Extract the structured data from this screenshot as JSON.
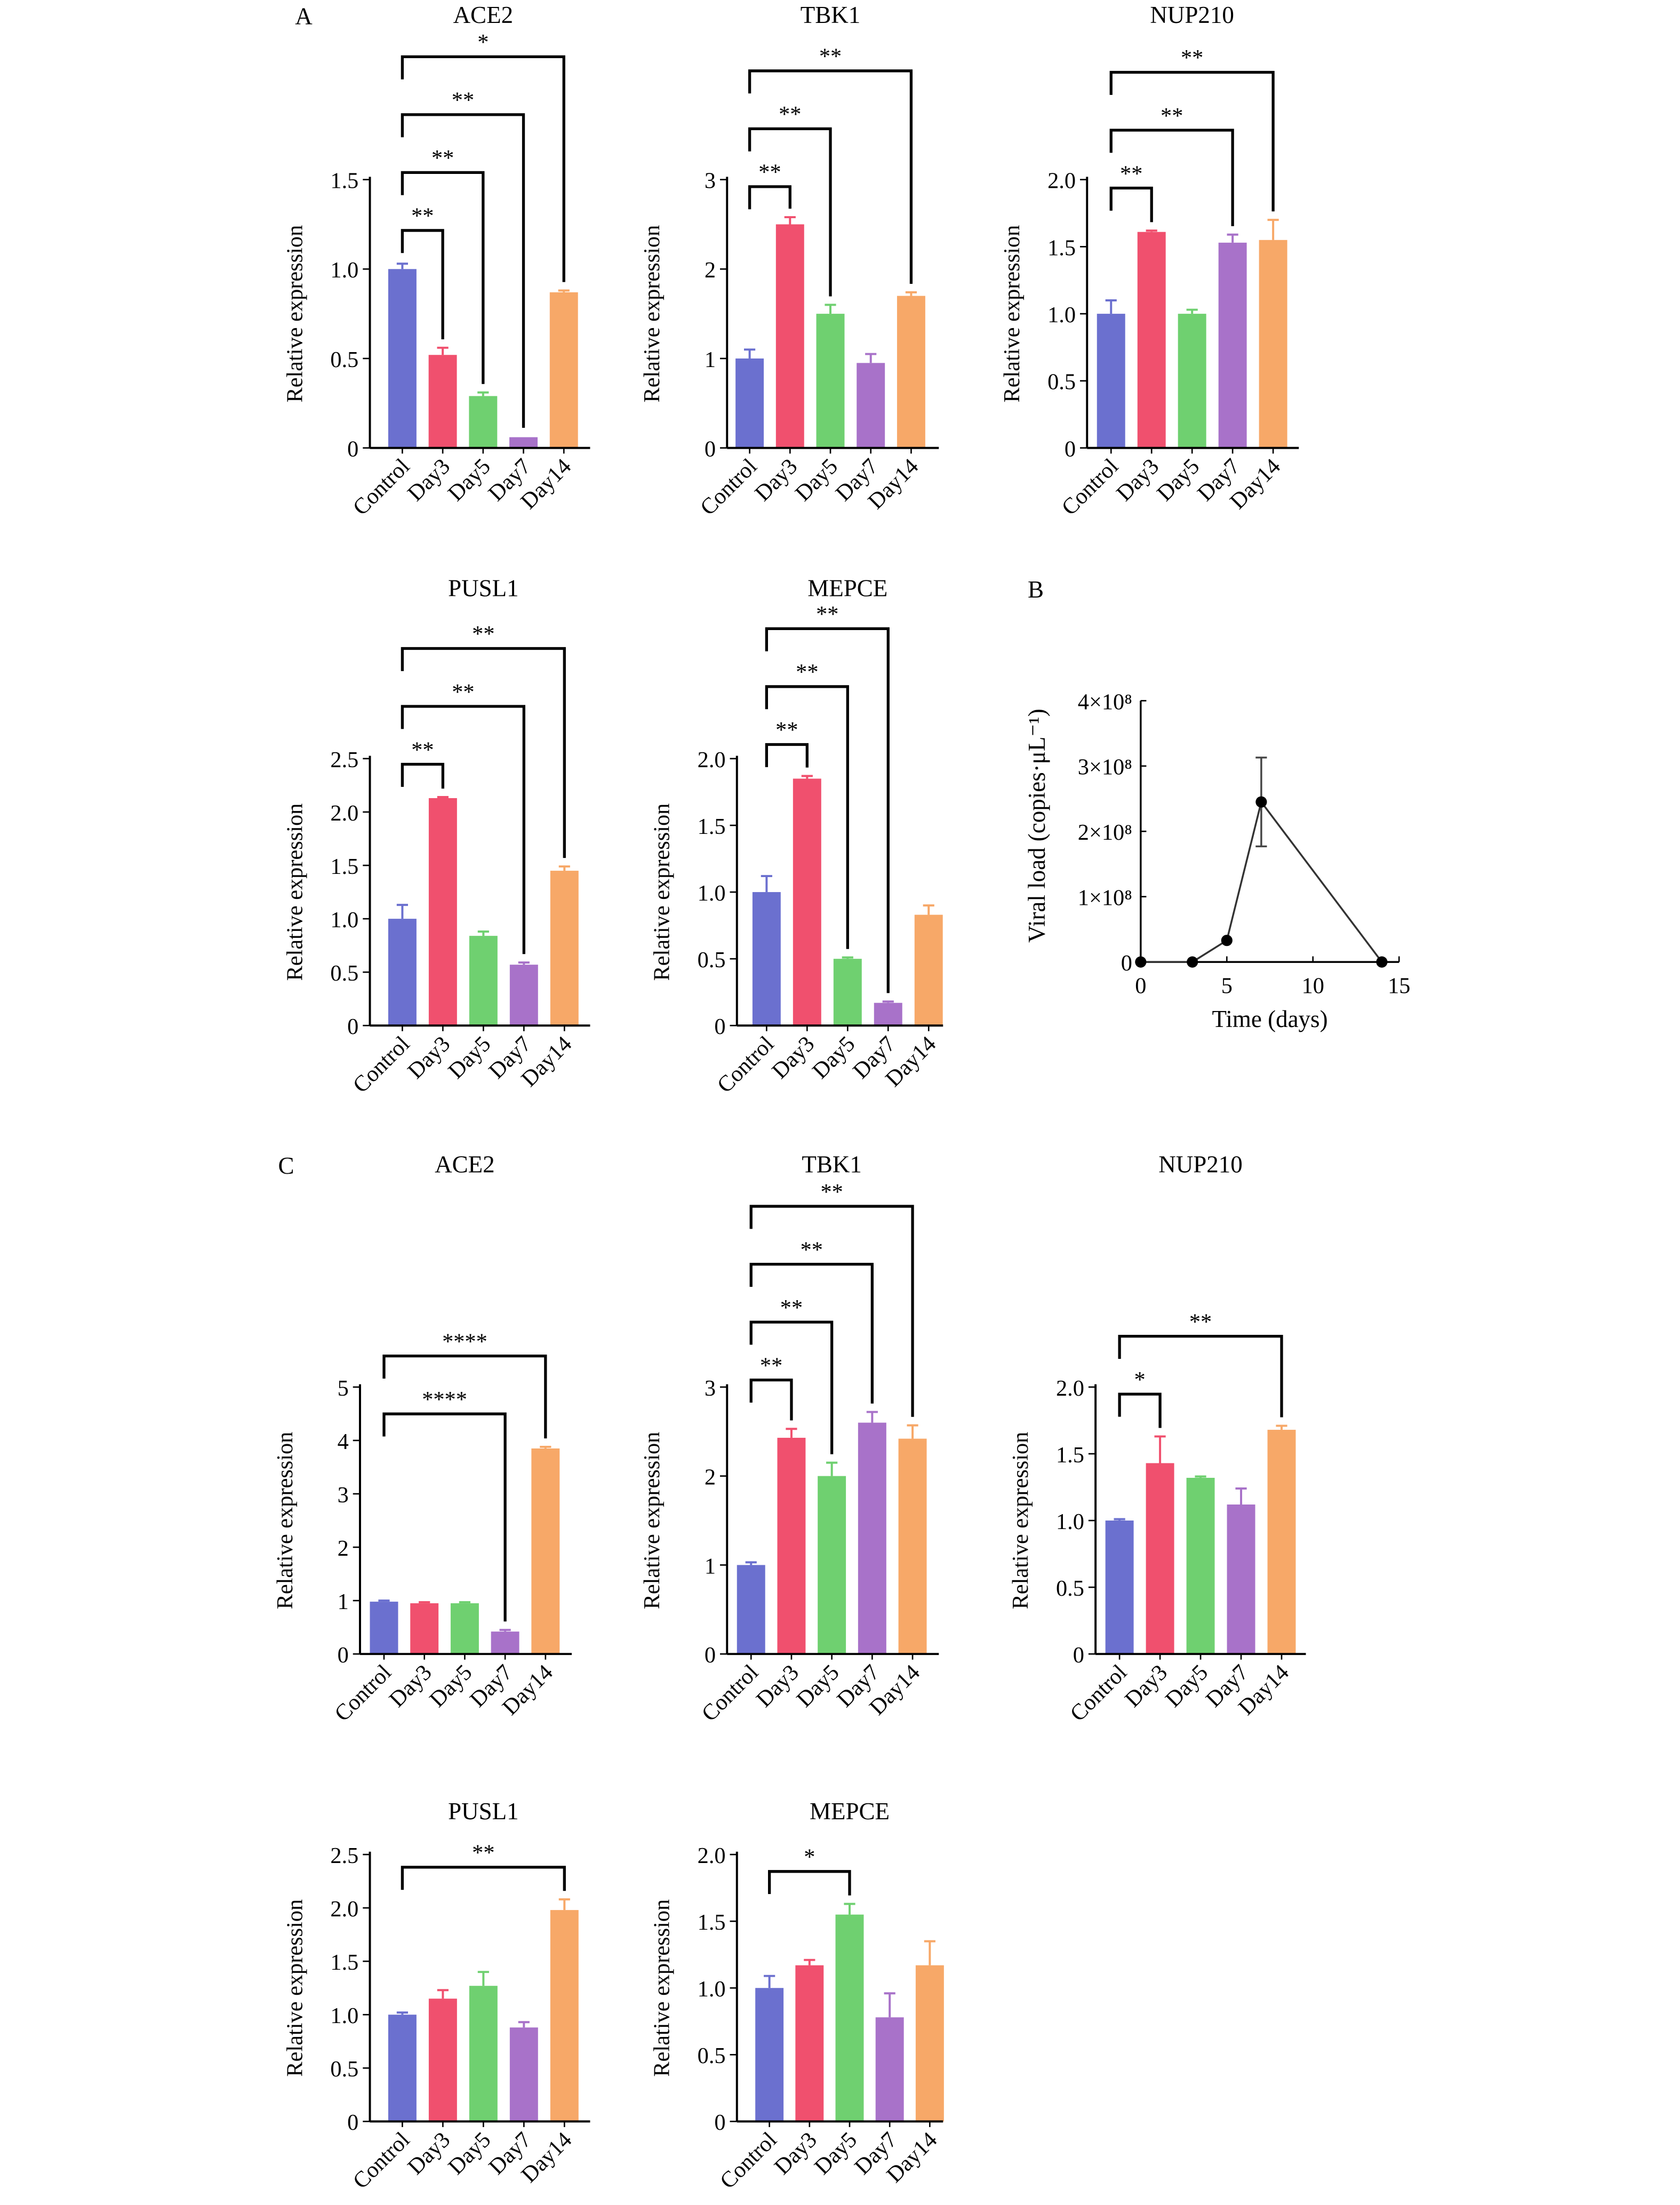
{
  "panel_letters": [
    "A",
    "B",
    "C"
  ],
  "colors": [
    "#6b70cf",
    "#f0506e",
    "#6fd070",
    "#a872c9",
    "#f7a868"
  ],
  "chart_data": [
    {
      "type": "bar",
      "panel": "A",
      "title": "ACE2",
      "ylabel": "Relative expression",
      "categories": [
        "Control",
        "Day3",
        "Day5",
        "Day7",
        "Day14"
      ],
      "values": [
        1.0,
        0.52,
        0.29,
        0.06,
        0.87
      ],
      "errors": [
        0.03,
        0.04,
        0.02,
        0.005,
        0.01
      ],
      "ylim": [
        0,
        1.5
      ],
      "yticks": [
        "0",
        "0.5",
        "1.0",
        "1.5"
      ],
      "yticks_values": [
        0,
        0.5,
        1.0,
        1.5
      ],
      "significance": [
        {
          "from": "Control",
          "to": "Day3",
          "label": "**"
        },
        {
          "from": "Control",
          "to": "Day5",
          "label": "**"
        },
        {
          "from": "Control",
          "to": "Day7",
          "label": "**"
        },
        {
          "from": "Control",
          "to": "Day14",
          "label": "*"
        }
      ]
    },
    {
      "type": "bar",
      "panel": "A",
      "title": "TBK1",
      "ylabel": "Relative expression",
      "categories": [
        "Control",
        "Day3",
        "Day5",
        "Day7",
        "Day14"
      ],
      "values": [
        1.0,
        2.5,
        1.5,
        0.95,
        1.7
      ],
      "errors": [
        0.1,
        0.08,
        0.1,
        0.1,
        0.04
      ],
      "ylim": [
        0,
        3
      ],
      "yticks": [
        "0",
        "1",
        "2",
        "3"
      ],
      "yticks_values": [
        0,
        1,
        2,
        3
      ],
      "significance": [
        {
          "from": "Control",
          "to": "Day3",
          "label": "**"
        },
        {
          "from": "Control",
          "to": "Day5",
          "label": "**"
        },
        {
          "from": "Control",
          "to": "Day14",
          "label": "**"
        }
      ]
    },
    {
      "type": "bar",
      "panel": "A",
      "title": "NUP210",
      "ylabel": "Relative expression",
      "categories": [
        "Control",
        "Day3",
        "Day5",
        "Day7",
        "Day14"
      ],
      "values": [
        1.0,
        1.61,
        1.0,
        1.53,
        1.55
      ],
      "errors": [
        0.1,
        0.01,
        0.03,
        0.06,
        0.15
      ],
      "ylim": [
        0,
        2.0
      ],
      "yticks": [
        "0",
        "0.5",
        "1.0",
        "1.5",
        "2.0"
      ],
      "yticks_values": [
        0,
        0.5,
        1.0,
        1.5,
        2.0
      ],
      "significance": [
        {
          "from": "Control",
          "to": "Day3",
          "label": "**"
        },
        {
          "from": "Control",
          "to": "Day7",
          "label": "**"
        },
        {
          "from": "Control",
          "to": "Day14",
          "label": "**"
        }
      ]
    },
    {
      "type": "bar",
      "panel": "A",
      "title": "PUSL1",
      "ylabel": "Relative expression",
      "categories": [
        "Control",
        "Day3",
        "Day5",
        "Day7",
        "Day14"
      ],
      "values": [
        1.0,
        2.13,
        0.84,
        0.57,
        1.45
      ],
      "errors": [
        0.13,
        0.01,
        0.04,
        0.02,
        0.04
      ],
      "ylim": [
        0,
        2.5
      ],
      "yticks": [
        "0",
        "0.5",
        "1.0",
        "1.5",
        "2.0",
        "2.5"
      ],
      "yticks_values": [
        0,
        0.5,
        1.0,
        1.5,
        2.0,
        2.5
      ],
      "significance": [
        {
          "from": "Control",
          "to": "Day3",
          "label": "**"
        },
        {
          "from": "Control",
          "to": "Day7",
          "label": "**"
        },
        {
          "from": "Control",
          "to": "Day14",
          "label": "**"
        }
      ]
    },
    {
      "type": "bar",
      "panel": "A",
      "title": "MEPCE",
      "ylabel": "Relative expression",
      "categories": [
        "Control",
        "Day3",
        "Day5",
        "Day7",
        "Day14"
      ],
      "values": [
        1.0,
        1.85,
        0.5,
        0.17,
        0.83
      ],
      "errors": [
        0.12,
        0.02,
        0.01,
        0.01,
        0.07
      ],
      "ylim": [
        0,
        2.0
      ],
      "yticks": [
        "0",
        "0.5",
        "1.0",
        "1.5",
        "2.0"
      ],
      "yticks_values": [
        0,
        0.5,
        1.0,
        1.5,
        2.0
      ],
      "significance": [
        {
          "from": "Control",
          "to": "Day3",
          "label": "**"
        },
        {
          "from": "Control",
          "to": "Day5",
          "label": "**"
        },
        {
          "from": "Control",
          "to": "Day7",
          "label": "**"
        }
      ]
    },
    {
      "type": "line",
      "panel": "B",
      "title": "",
      "xlabel": "Time (days)",
      "ylabel": "Viral load (copies·μL⁻¹)",
      "x": [
        0,
        3,
        5,
        7,
        14
      ],
      "y": [
        0,
        0,
        33000000,
        245000000,
        0
      ],
      "errors": [
        0,
        0,
        0,
        68000000,
        0
      ],
      "xlim": [
        0,
        15
      ],
      "ylim": [
        0,
        400000000
      ],
      "xticks": [
        "0",
        "5",
        "10",
        "15"
      ],
      "xticks_values": [
        0,
        5,
        10,
        15
      ],
      "yticks": [
        "0",
        "1×10⁸",
        "2×10⁸",
        "3×10⁸",
        "4×10⁸"
      ],
      "yticks_values": [
        0,
        100000000,
        200000000,
        300000000,
        400000000
      ]
    },
    {
      "type": "bar",
      "panel": "C",
      "title": "ACE2",
      "ylabel": "Relative expression",
      "categories": [
        "Control",
        "Day3",
        "Day5",
        "Day7",
        "Day14"
      ],
      "values": [
        0.98,
        0.95,
        0.95,
        0.42,
        3.85
      ],
      "errors": [
        0.02,
        0.02,
        0.02,
        0.03,
        0.03
      ],
      "ylim": [
        0,
        5
      ],
      "yticks": [
        "0",
        "1",
        "2",
        "3",
        "4",
        "5"
      ],
      "yticks_values": [
        0,
        1,
        2,
        3,
        4,
        5
      ],
      "significance": [
        {
          "from": "Control",
          "to": "Day7",
          "label": "****"
        },
        {
          "from": "Control",
          "to": "Day14",
          "label": "****"
        }
      ]
    },
    {
      "type": "bar",
      "panel": "C",
      "title": "TBK1",
      "ylabel": "Relative expression",
      "categories": [
        "Control",
        "Day3",
        "Day5",
        "Day7",
        "Day14"
      ],
      "values": [
        1.0,
        2.43,
        2.0,
        2.6,
        2.42
      ],
      "errors": [
        0.03,
        0.1,
        0.15,
        0.12,
        0.15
      ],
      "ylim": [
        0,
        3
      ],
      "yticks": [
        "0",
        "1",
        "2",
        "3"
      ],
      "yticks_values": [
        0,
        1,
        2,
        3
      ],
      "significance": [
        {
          "from": "Control",
          "to": "Day3",
          "label": "**"
        },
        {
          "from": "Control",
          "to": "Day5",
          "label": "**"
        },
        {
          "from": "Control",
          "to": "Day7",
          "label": "**"
        },
        {
          "from": "Control",
          "to": "Day14",
          "label": "**"
        }
      ]
    },
    {
      "type": "bar",
      "panel": "C",
      "title": "NUP210",
      "ylabel": "Relative expression",
      "categories": [
        "Control",
        "Day3",
        "Day5",
        "Day7",
        "Day14"
      ],
      "values": [
        1.0,
        1.43,
        1.32,
        1.12,
        1.68
      ],
      "errors": [
        0.01,
        0.2,
        0.01,
        0.12,
        0.03
      ],
      "ylim": [
        0,
        2.0
      ],
      "yticks": [
        "0",
        "0.5",
        "1.0",
        "1.5",
        "2.0"
      ],
      "yticks_values": [
        0,
        0.5,
        1.0,
        1.5,
        2.0
      ],
      "significance": [
        {
          "from": "Control",
          "to": "Day3",
          "label": "*"
        },
        {
          "from": "Control",
          "to": "Day14",
          "label": "**"
        }
      ]
    },
    {
      "type": "bar",
      "panel": "C",
      "title": "PUSL1",
      "ylabel": "Relative expression",
      "categories": [
        "Control",
        "Day3",
        "Day5",
        "Day7",
        "Day14"
      ],
      "values": [
        1.0,
        1.15,
        1.27,
        0.88,
        1.98
      ],
      "errors": [
        0.02,
        0.08,
        0.13,
        0.05,
        0.1
      ],
      "ylim": [
        0,
        2.5
      ],
      "yticks": [
        "0",
        "0.5",
        "1.0",
        "1.5",
        "2.0",
        "2.5"
      ],
      "yticks_values": [
        0,
        0.5,
        1.0,
        1.5,
        2.0,
        2.5
      ],
      "significance": [
        {
          "from": "Control",
          "to": "Day14",
          "label": "**"
        }
      ]
    },
    {
      "type": "bar",
      "panel": "C",
      "title": "MEPCE",
      "ylabel": "Relative expression",
      "categories": [
        "Control",
        "Day3",
        "Day5",
        "Day7",
        "Day14"
      ],
      "values": [
        1.0,
        1.17,
        1.55,
        0.78,
        1.17
      ],
      "errors": [
        0.09,
        0.04,
        0.08,
        0.18,
        0.18
      ],
      "ylim": [
        0,
        2.0
      ],
      "yticks": [
        "0",
        "0.5",
        "1.0",
        "1.5",
        "2.0"
      ],
      "yticks_values": [
        0,
        0.5,
        1.0,
        1.5,
        2.0
      ],
      "significance": [
        {
          "from": "Control",
          "to": "Day5",
          "label": "*"
        }
      ]
    }
  ]
}
